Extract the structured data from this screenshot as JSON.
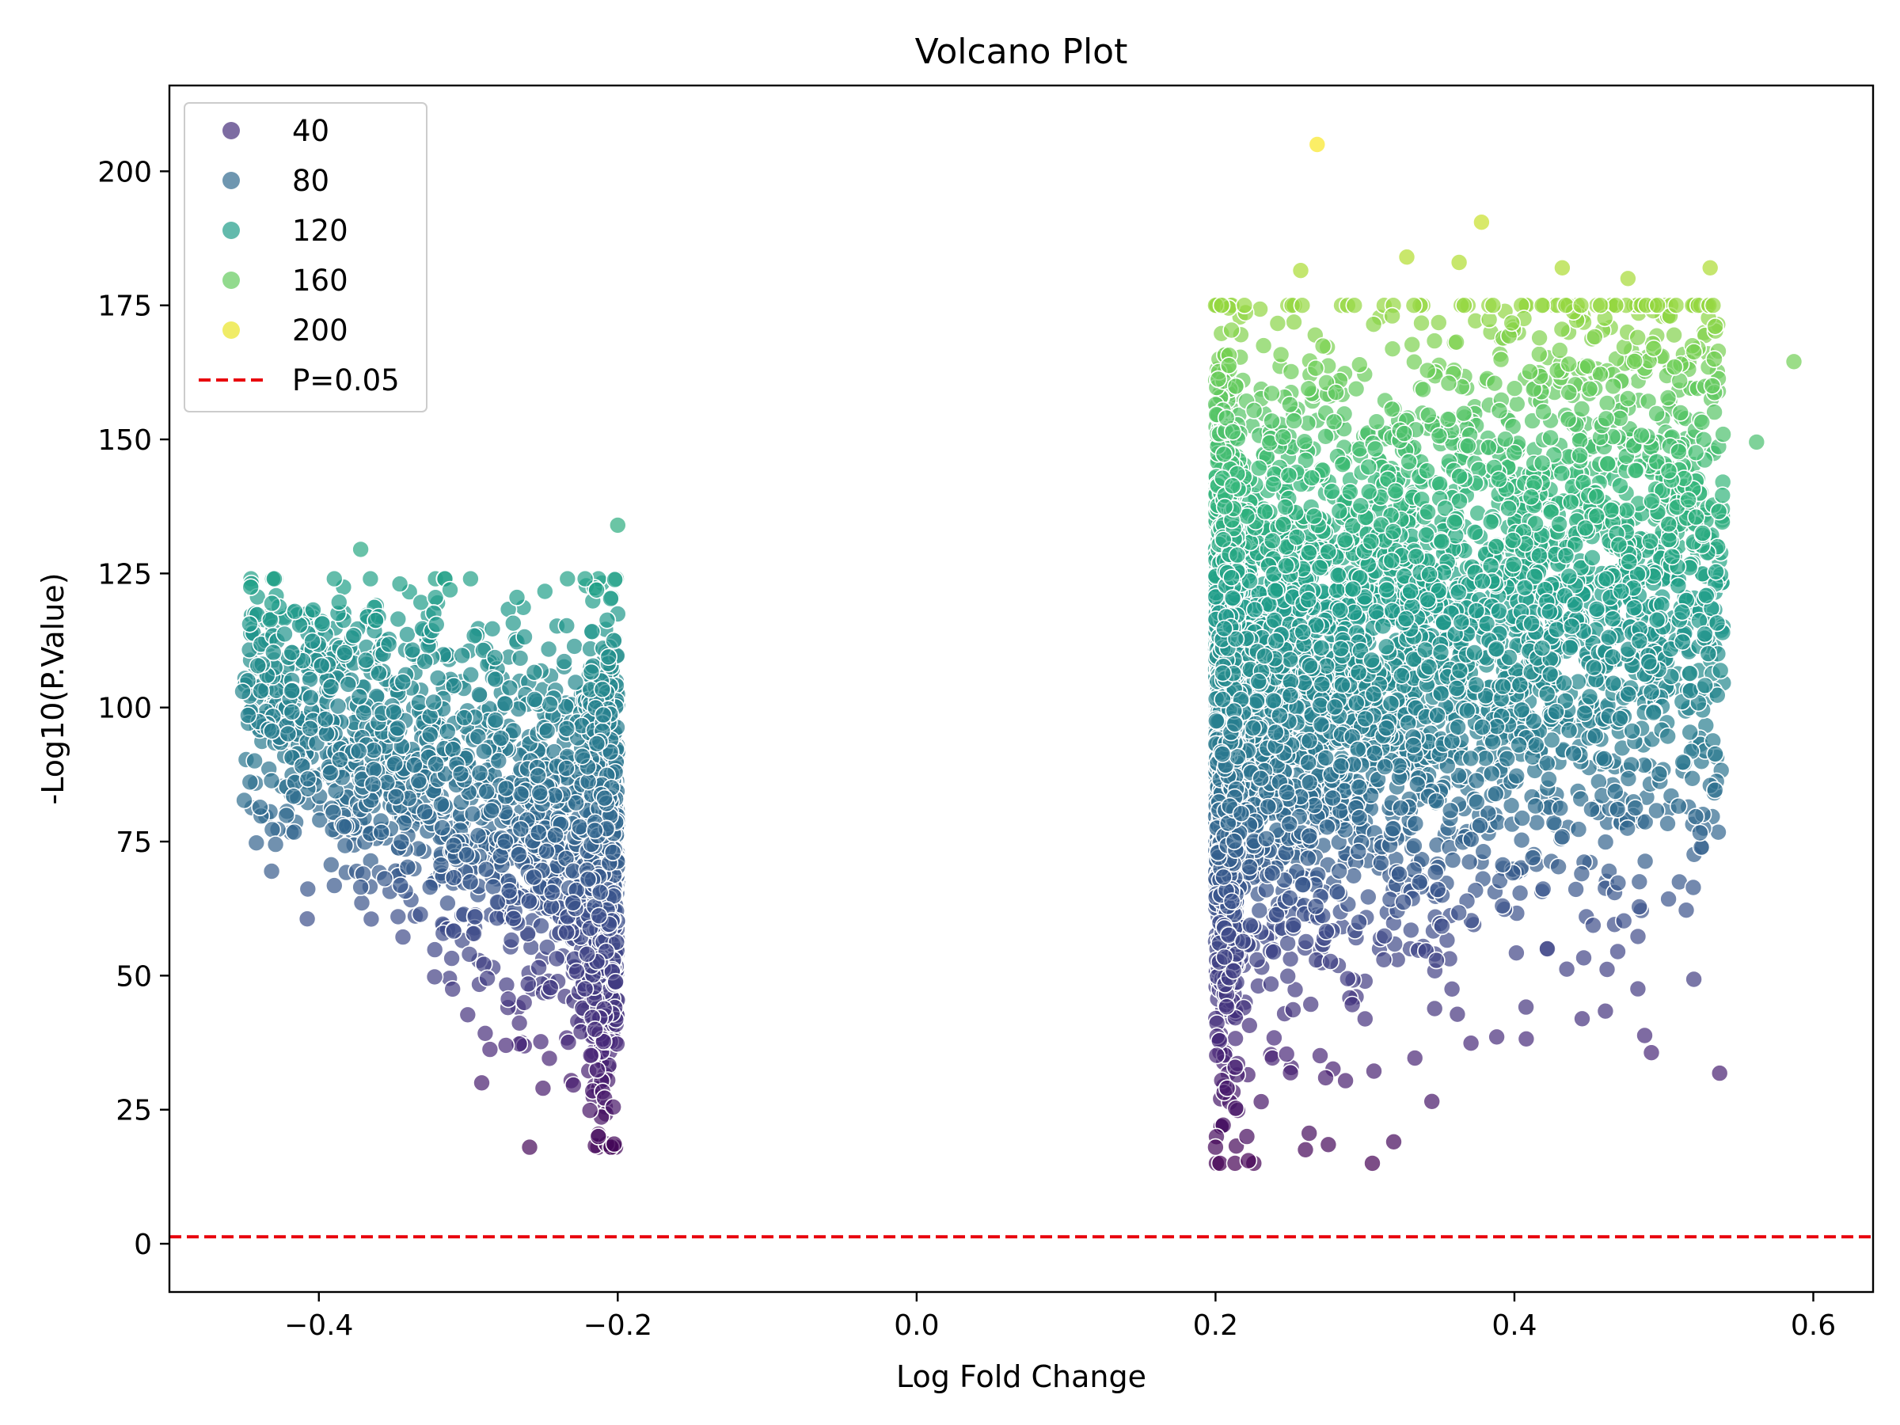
{
  "chart_data": {
    "type": "scatter",
    "title": "Volcano Plot",
    "xlabel": "Log Fold Change",
    "ylabel": "-Log10(P.Value)",
    "xlim": [
      -0.5,
      0.64
    ],
    "ylim": [
      -9,
      216
    ],
    "x_ticks": [
      -0.4,
      -0.2,
      0.0,
      0.2,
      0.4,
      0.6
    ],
    "x_tick_labels": [
      "−0.4",
      "−0.2",
      "0.0",
      "0.2",
      "0.4",
      "0.6"
    ],
    "y_ticks": [
      0,
      25,
      50,
      75,
      100,
      125,
      150,
      175,
      200
    ],
    "y_tick_labels": [
      "0",
      "25",
      "50",
      "75",
      "100",
      "125",
      "150",
      "175",
      "200"
    ],
    "colormap": "viridis",
    "color_range": [
      15,
      206
    ],
    "point_alpha": 0.7,
    "legend": {
      "placement": "top-left",
      "hue_entries": [
        {
          "label": "40",
          "value": 40
        },
        {
          "label": "80",
          "value": 80
        },
        {
          "label": "120",
          "value": 120
        },
        {
          "label": "160",
          "value": 160
        },
        {
          "label": "200",
          "value": 200
        }
      ],
      "threshold_label": "P=0.05"
    },
    "threshold": {
      "y": 1.3,
      "color": "#e8000b",
      "style": "dashed"
    },
    "clusters": [
      {
        "x_range": [
          -0.45,
          -0.2
        ],
        "y_center_at_xmin": 103,
        "y_center_at_xmax": 72,
        "y_spread": 16
      },
      {
        "x_range": [
          0.2,
          0.59
        ],
        "y_center_at_xmin": 100,
        "y_center_at_xmax": 135,
        "y_spread": 28
      }
    ],
    "notable_points": [
      {
        "x": 0.268,
        "y": 205
      },
      {
        "x": 0.378,
        "y": 190.5
      },
      {
        "x": 0.328,
        "y": 184
      },
      {
        "x": 0.531,
        "y": 182
      },
      {
        "x": 0.432,
        "y": 182
      },
      {
        "x": 0.363,
        "y": 183
      },
      {
        "x": 0.257,
        "y": 181.5
      },
      {
        "x": 0.476,
        "y": 180
      },
      {
        "x": 0.587,
        "y": 164.5
      },
      {
        "x": 0.562,
        "y": 149.5
      },
      {
        "x": -0.2,
        "y": 134
      },
      {
        "x": -0.372,
        "y": 129.5
      },
      {
        "x": -0.451,
        "y": 103
      },
      {
        "x": -0.347,
        "y": 61
      },
      {
        "x": -0.372,
        "y": 66.5
      },
      {
        "x": -0.291,
        "y": 30
      },
      {
        "x": -0.25,
        "y": 29
      },
      {
        "x": -0.213,
        "y": 20
      },
      {
        "x": -0.203,
        "y": 25.5
      },
      {
        "x": 0.2,
        "y": 18
      },
      {
        "x": 0.222,
        "y": 15.5
      },
      {
        "x": 0.221,
        "y": 20
      },
      {
        "x": 0.392,
        "y": 63
      },
      {
        "x": 0.445,
        "y": 69
      },
      {
        "x": 0.469,
        "y": 81
      },
      {
        "x": 0.49,
        "y": 108.5
      },
      {
        "x": 0.526,
        "y": 132.5
      }
    ]
  }
}
